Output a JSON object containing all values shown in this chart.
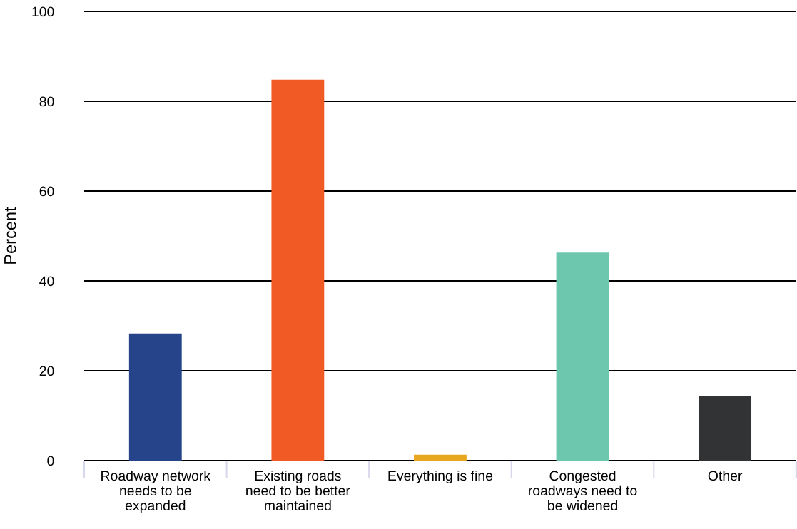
{
  "chart_data": {
    "type": "bar",
    "ylabel": "Percent",
    "categories": [
      "Roadway network\nneeds to be\nexpanded",
      "Existing roads\nneed to be better\nmaintained",
      "Everything is fine",
      "Congested\nroadways need to\nbe widened",
      "Other"
    ],
    "values": [
      28.3,
      84.8,
      1.3,
      46.3,
      14.3
    ],
    "colors": [
      "#264489",
      "#f15a24",
      "#e9a61f",
      "#6dc7ae",
      "#323335"
    ],
    "ylim": [
      0,
      100
    ],
    "yticks": [
      0,
      20,
      40,
      60,
      80,
      100
    ],
    "grid": "y",
    "legend": false
  }
}
